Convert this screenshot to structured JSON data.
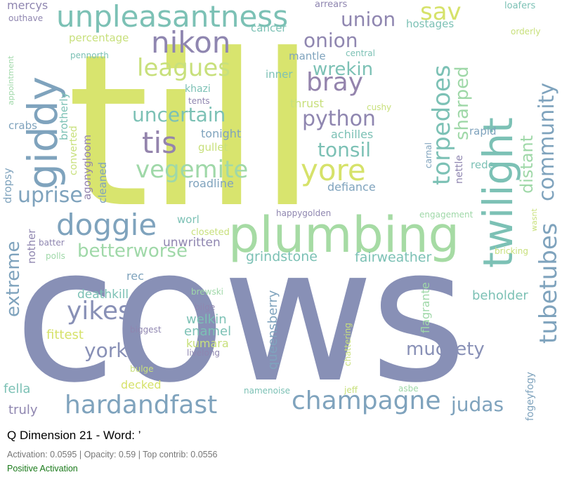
{
  "caption": {
    "title": "Q Dimension 21 - Word: ’",
    "stats": "Activation: 0.0595 | Opacity: 0.59 | Top contrib: 0.0556",
    "polarity": "Positive Activation"
  },
  "colors": {
    "lime": "#d6e26a",
    "slate": "#8890b6",
    "teal": "#7ab9b8",
    "mint": "#9fd8a8",
    "purple": "#9484ad",
    "steel": "#7fa3bd",
    "caption_green": "#1a7a1a"
  },
  "words": [
    "till",
    "cows",
    "plumbing",
    "unpleasantness",
    "giddy",
    "twilight",
    "nikon",
    "leagues",
    "tubetubes",
    "community",
    "torpedoes",
    "sharped",
    "yore",
    "doggie",
    "tis",
    "vegemite",
    "champagne",
    "hardandfast",
    "yikes",
    "muckety",
    "yorks",
    "betterworse",
    "uprise",
    "uncertain",
    "python",
    "tonsil",
    "bray",
    "wrekin",
    "onion",
    "union",
    "sav",
    "extreme",
    "judas",
    "distant",
    "grindstone",
    "fairweather",
    "queensberry",
    "welkin",
    "kumara",
    "enamel",
    "deathkill",
    "beholder",
    "fittest",
    "fella",
    "truly",
    "decked",
    "tonight",
    "gullet",
    "roadline",
    "defiance",
    "achilles",
    "thrust",
    "mantle",
    "inner",
    "khazi",
    "tents",
    "cushy",
    "rapid",
    "rede",
    "nettle",
    "carnal",
    "hostages",
    "central",
    "cancer",
    "percentage",
    "pennorth",
    "arrears",
    "loafers",
    "orderly",
    "mercys",
    "outhave",
    "appointment",
    "brotherly",
    "crabs",
    "dropsy",
    "converted",
    "agonygloom",
    "cleaned",
    "nother",
    "batter",
    "polls",
    "unwritten",
    "worl",
    "closeted",
    "rec",
    "happygolden",
    "engagement",
    "wasnt",
    "bricking",
    "brewski",
    "bilge",
    "biggest",
    "bulge",
    "livelong",
    "flagrante",
    "chattering",
    "namenoise",
    "jeff",
    "asbe",
    "fogeyfogy"
  ]
}
